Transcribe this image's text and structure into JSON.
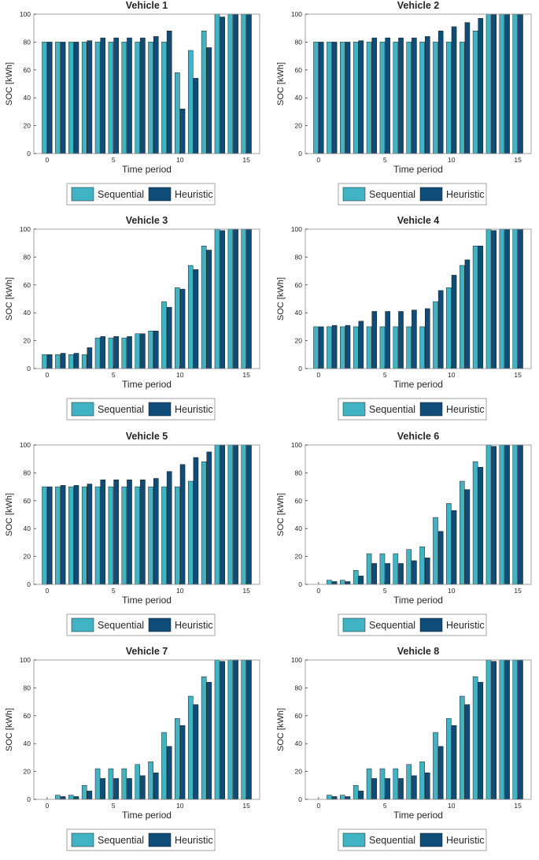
{
  "figure": {
    "colors": {
      "sequential": "#40B4C4",
      "heuristic": "#0F4C77",
      "axis": "#262626",
      "frame": "#8c8c8c"
    }
  },
  "chart_data": [
    {
      "type": "bar",
      "title": "Vehicle 1",
      "xlabel": "Time period",
      "ylabel": "SOC [kWh]",
      "x": [
        0,
        1,
        2,
        3,
        4,
        5,
        6,
        7,
        8,
        9,
        10,
        11,
        12,
        13,
        14,
        15
      ],
      "xticks": [
        "0",
        "5",
        "10",
        "15"
      ],
      "yticks": [
        "0",
        "20",
        "40",
        "60",
        "80",
        "100"
      ],
      "ylim": [
        0,
        100
      ],
      "legend": [
        "Sequential",
        "Heuristic"
      ],
      "series": [
        {
          "name": "Sequential",
          "values": [
            80,
            80,
            80,
            80,
            80,
            80,
            80,
            80,
            80,
            80,
            58,
            74,
            88,
            100,
            100,
            100
          ]
        },
        {
          "name": "Heuristic",
          "values": [
            80,
            80,
            80,
            81,
            83,
            83,
            83,
            83,
            84,
            88,
            32,
            54,
            76,
            98,
            100,
            100
          ]
        }
      ]
    },
    {
      "type": "bar",
      "title": "Vehicle 2",
      "xlabel": "Time period",
      "ylabel": "SOC [kWh]",
      "x": [
        0,
        1,
        2,
        3,
        4,
        5,
        6,
        7,
        8,
        9,
        10,
        11,
        12,
        13,
        14,
        15
      ],
      "xticks": [
        "0",
        "5",
        "10",
        "15"
      ],
      "yticks": [
        "0",
        "20",
        "40",
        "60",
        "80",
        "100"
      ],
      "ylim": [
        0,
        100
      ],
      "legend": [
        "Sequential",
        "Heuristic"
      ],
      "series": [
        {
          "name": "Sequential",
          "values": [
            80,
            80,
            80,
            80,
            80,
            80,
            80,
            80,
            80,
            80,
            80,
            80,
            88,
            100,
            100,
            100
          ]
        },
        {
          "name": "Heuristic",
          "values": [
            80,
            80,
            80,
            81,
            83,
            83,
            83,
            83,
            84,
            88,
            91,
            94,
            97,
            100,
            100,
            100
          ]
        }
      ]
    },
    {
      "type": "bar",
      "title": "Vehicle 3",
      "xlabel": "Time period",
      "ylabel": "SOC [kWh]",
      "x": [
        0,
        1,
        2,
        3,
        4,
        5,
        6,
        7,
        8,
        9,
        10,
        11,
        12,
        13,
        14,
        15
      ],
      "xticks": [
        "0",
        "5",
        "10",
        "15"
      ],
      "yticks": [
        "0",
        "20",
        "40",
        "60",
        "80",
        "100"
      ],
      "ylim": [
        0,
        100
      ],
      "legend": [
        "Sequential",
        "Heuristic"
      ],
      "series": [
        {
          "name": "Sequential",
          "values": [
            10,
            10,
            10,
            10,
            22,
            22,
            22,
            25,
            27,
            48,
            58,
            74,
            88,
            100,
            100,
            100
          ]
        },
        {
          "name": "Heuristic",
          "values": [
            10,
            11,
            11,
            15,
            23,
            23,
            23,
            25,
            27,
            44,
            57,
            71,
            85,
            99,
            100,
            100
          ]
        }
      ]
    },
    {
      "type": "bar",
      "title": "Vehicle 4",
      "xlabel": "Time period",
      "ylabel": "SOC [kWh]",
      "x": [
        0,
        1,
        2,
        3,
        4,
        5,
        6,
        7,
        8,
        9,
        10,
        11,
        12,
        13,
        14,
        15
      ],
      "xticks": [
        "0",
        "5",
        "10",
        "15"
      ],
      "yticks": [
        "0",
        "20",
        "40",
        "60",
        "80",
        "100"
      ],
      "ylim": [
        0,
        100
      ],
      "legend": [
        "Sequential",
        "Heuristic"
      ],
      "series": [
        {
          "name": "Sequential",
          "values": [
            30,
            30,
            30,
            30,
            30,
            30,
            30,
            30,
            30,
            48,
            58,
            74,
            88,
            100,
            100,
            100
          ]
        },
        {
          "name": "Heuristic",
          "values": [
            30,
            31,
            31,
            34,
            41,
            41,
            41,
            42,
            43,
            56,
            67,
            78,
            88,
            99,
            100,
            100
          ]
        }
      ]
    },
    {
      "type": "bar",
      "title": "Vehicle 5",
      "xlabel": "Time period",
      "ylabel": "SOC [kWh]",
      "x": [
        0,
        1,
        2,
        3,
        4,
        5,
        6,
        7,
        8,
        9,
        10,
        11,
        12,
        13,
        14,
        15
      ],
      "xticks": [
        "0",
        "5",
        "10",
        "15"
      ],
      "yticks": [
        "0",
        "20",
        "40",
        "60",
        "80",
        "100"
      ],
      "ylim": [
        0,
        100
      ],
      "legend": [
        "Sequential",
        "Heuristic"
      ],
      "series": [
        {
          "name": "Sequential",
          "values": [
            70,
            70,
            70,
            70,
            70,
            70,
            70,
            70,
            70,
            70,
            70,
            74,
            88,
            100,
            100,
            100
          ]
        },
        {
          "name": "Heuristic",
          "values": [
            70,
            71,
            71,
            72,
            75,
            75,
            75,
            75,
            76,
            81,
            86,
            91,
            95,
            100,
            100,
            100
          ]
        }
      ]
    },
    {
      "type": "bar",
      "title": "Vehicle 6",
      "xlabel": "Time period",
      "ylabel": "SOC [kWh]",
      "x": [
        0,
        1,
        2,
        3,
        4,
        5,
        6,
        7,
        8,
        9,
        10,
        11,
        12,
        13,
        14,
        15
      ],
      "xticks": [
        "0",
        "5",
        "10",
        "15"
      ],
      "yticks": [
        "0",
        "20",
        "40",
        "60",
        "80",
        "100"
      ],
      "ylim": [
        0,
        100
      ],
      "legend": [
        "Sequential",
        "Heuristic"
      ],
      "series": [
        {
          "name": "Sequential",
          "values": [
            0,
            3,
            3,
            10,
            22,
            22,
            22,
            25,
            27,
            48,
            58,
            74,
            88,
            100,
            100,
            100
          ]
        },
        {
          "name": "Heuristic",
          "values": [
            0,
            2,
            2,
            6,
            15,
            15,
            15,
            17,
            19,
            38,
            53,
            68,
            84,
            99,
            100,
            100
          ]
        }
      ]
    },
    {
      "type": "bar",
      "title": "Vehicle 7",
      "xlabel": "Time period",
      "ylabel": "SOC [kWh]",
      "x": [
        0,
        1,
        2,
        3,
        4,
        5,
        6,
        7,
        8,
        9,
        10,
        11,
        12,
        13,
        14,
        15
      ],
      "xticks": [
        "0",
        "5",
        "10",
        "15"
      ],
      "yticks": [
        "0",
        "20",
        "40",
        "60",
        "80",
        "100"
      ],
      "ylim": [
        0,
        100
      ],
      "legend": [
        "Sequential",
        "Heuristic"
      ],
      "series": [
        {
          "name": "Sequential",
          "values": [
            0,
            3,
            3,
            10,
            22,
            22,
            22,
            25,
            27,
            48,
            58,
            74,
            88,
            100,
            100,
            100
          ]
        },
        {
          "name": "Heuristic",
          "values": [
            0,
            2,
            2,
            6,
            15,
            15,
            15,
            17,
            19,
            38,
            53,
            68,
            84,
            99,
            100,
            100
          ]
        }
      ]
    },
    {
      "type": "bar",
      "title": "Vehicle 8",
      "xlabel": "Time period",
      "ylabel": "SOC [kWh]",
      "x": [
        0,
        1,
        2,
        3,
        4,
        5,
        6,
        7,
        8,
        9,
        10,
        11,
        12,
        13,
        14,
        15
      ],
      "xticks": [
        "0",
        "5",
        "10",
        "15"
      ],
      "yticks": [
        "0",
        "20",
        "40",
        "60",
        "80",
        "100"
      ],
      "ylim": [
        0,
        100
      ],
      "legend": [
        "Sequential",
        "Heuristic"
      ],
      "series": [
        {
          "name": "Sequential",
          "values": [
            0,
            3,
            3,
            10,
            22,
            22,
            22,
            25,
            27,
            48,
            58,
            74,
            88,
            100,
            100,
            100
          ]
        },
        {
          "name": "Heuristic",
          "values": [
            0,
            2,
            2,
            6,
            15,
            15,
            15,
            17,
            19,
            38,
            53,
            68,
            84,
            99,
            100,
            100
          ]
        }
      ]
    }
  ]
}
